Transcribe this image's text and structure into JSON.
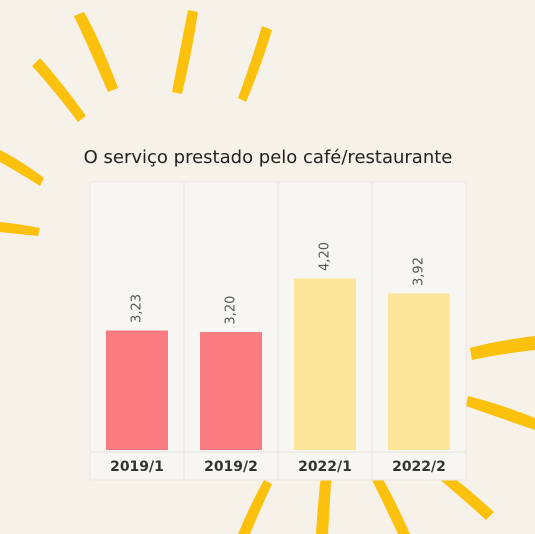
{
  "chart_data": {
    "type": "bar",
    "title": "O serviço prestado pelo café/restaurante",
    "categories": [
      "2019/1",
      "2019/2",
      "2022/1",
      "2022/2"
    ],
    "values": [
      3.23,
      3.2,
      4.2,
      3.92
    ],
    "value_labels": [
      "3,23",
      "3,20",
      "4,20",
      "3,92"
    ],
    "colors": [
      "#f87c7f",
      "#f87c7f",
      "#fde699",
      "#fde699"
    ],
    "ylim": [
      1,
      6
    ]
  }
}
